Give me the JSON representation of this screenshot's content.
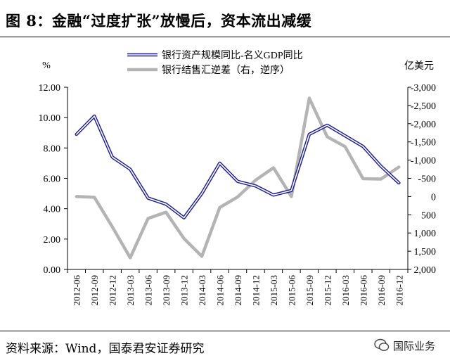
{
  "header": {
    "title": "图 8：金融“过度扩张”放慢后，资本流出减缓"
  },
  "footer": {
    "source": "资料来源：Wind，国泰君安证券研究",
    "watermark": "国际业务"
  },
  "chart_data": {
    "type": "line",
    "categories": [
      "2012-06",
      "2012-09",
      "2012-12",
      "2013-03",
      "2013-06",
      "2013-09",
      "2013-12",
      "2014-03",
      "2014-06",
      "2014-09",
      "2014-12",
      "2015-03",
      "2015-06",
      "2015-09",
      "2015-12",
      "2016-03",
      "2016-06",
      "2016-09",
      "2016-12"
    ],
    "left_axis": {
      "unit": "%",
      "ylim": [
        0,
        12
      ],
      "ticks": [
        "0.00",
        "2.00",
        "4.00",
        "6.00",
        "8.00",
        "10.00",
        "12.00"
      ]
    },
    "right_axis": {
      "unit": "亿美元",
      "ylim": [
        -3000,
        2000
      ],
      "inverted": true,
      "ticks": [
        "-3,000",
        "-2,500",
        "-2,000",
        "-1,500",
        "-1,000",
        "-500",
        "0",
        "500",
        "1,000",
        "1,500",
        "2,000"
      ]
    },
    "series": [
      {
        "name": "银行资产规模同比-名义GDP同比",
        "axis": "left",
        "color": "#1f1f8f",
        "values": [
          8.9,
          10.1,
          7.4,
          6.6,
          4.7,
          4.3,
          3.4,
          5.0,
          7.0,
          5.8,
          5.5,
          4.9,
          5.2,
          8.9,
          9.5,
          8.8,
          8.1,
          6.8,
          5.7
        ]
      },
      {
        "name": "银行结售汇逆差（右，逆序）",
        "axis": "right",
        "color": "#b4b4b4",
        "values": [
          0,
          20,
          830,
          1680,
          600,
          430,
          1150,
          1640,
          300,
          10,
          -450,
          -790,
          0,
          -2700,
          -1640,
          -1370,
          -490,
          -480,
          -810
        ]
      }
    ]
  }
}
